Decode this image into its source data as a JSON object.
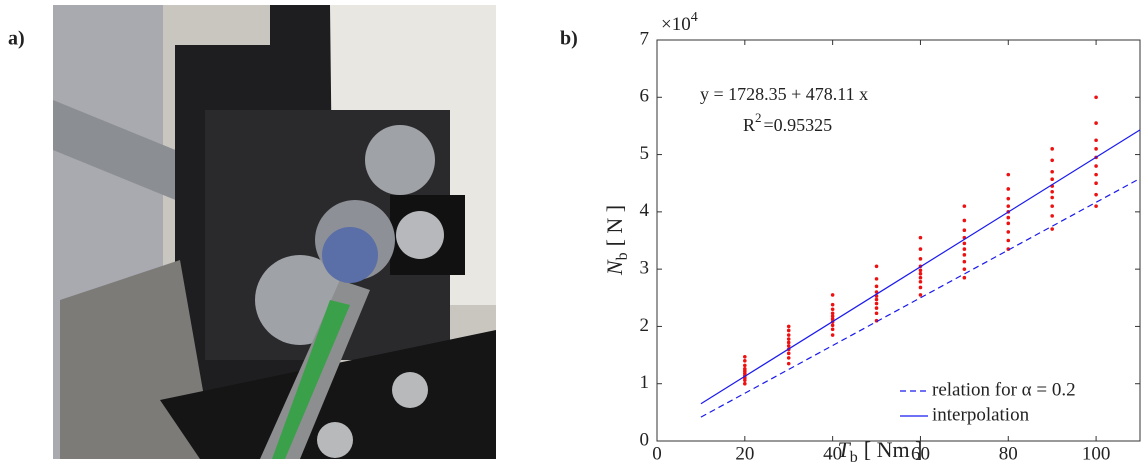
{
  "panel_labels": [
    "a)",
    "b)"
  ],
  "chart_data": {
    "type": "scatter",
    "xlabel": {
      "main": "T",
      "sub": "b",
      "unit": "[ Nm ]"
    },
    "ylabel": {
      "main": "N",
      "sub": "b",
      "unit": "[ N ]"
    },
    "y_multiplier": {
      "base": "×10",
      "exponent": "4"
    },
    "annotations": {
      "equation": "y = 1728.35 + 478.11 x",
      "r2_base": "R",
      "r2_exponent": "2",
      "r2_value": "=0.95325"
    },
    "xlim": [
      0,
      110
    ],
    "xticks": [
      0,
      20,
      40,
      60,
      80,
      100
    ],
    "ylim": [
      0,
      70000
    ],
    "yticks": [
      {
        "value": 0,
        "label": "0"
      },
      {
        "value": 10000,
        "label": "1"
      },
      {
        "value": 20000,
        "label": "2"
      },
      {
        "value": 30000,
        "label": "3"
      },
      {
        "value": 40000,
        "label": "4"
      },
      {
        "value": 50000,
        "label": "5"
      },
      {
        "value": 60000,
        "label": "6"
      },
      {
        "value": 70000,
        "label": "7"
      }
    ],
    "legend": "lower right",
    "series": [
      {
        "color": "#ee1111",
        "linestyle": "none",
        "x": [
          20,
          20,
          20,
          20,
          20,
          20,
          20,
          20,
          20,
          20,
          30,
          30,
          30,
          30,
          30,
          30,
          30,
          30,
          30,
          30,
          40,
          40,
          40,
          40,
          40,
          40,
          40,
          40,
          40,
          40,
          50,
          50,
          50,
          50,
          50,
          50,
          50,
          50,
          50,
          50,
          60,
          60,
          60,
          60,
          60,
          60,
          60,
          60,
          60,
          60,
          70,
          70,
          70,
          70,
          70,
          70,
          70,
          70,
          70,
          70,
          80,
          80,
          80,
          80,
          80,
          80,
          80,
          80,
          80,
          80,
          90,
          90,
          90,
          90,
          90,
          90,
          90,
          90,
          90,
          90,
          100,
          100,
          100,
          100,
          100,
          100,
          100,
          100,
          100,
          100
        ],
        "values": [
          10000,
          10600,
          11000,
          11400,
          11800,
          12200,
          12600,
          13200,
          14000,
          14700,
          13500,
          14500,
          15300,
          16000,
          16600,
          17200,
          17800,
          18500,
          19300,
          20000,
          18500,
          19500,
          20200,
          20800,
          21300,
          21800,
          22300,
          23000,
          23800,
          25500,
          21000,
          22300,
          23200,
          24000,
          24700,
          25300,
          26000,
          27000,
          28300,
          30500,
          25500,
          26800,
          27800,
          28500,
          29200,
          29800,
          30500,
          31800,
          33500,
          35500,
          28500,
          30000,
          31300,
          32500,
          33500,
          34500,
          35500,
          36800,
          38500,
          41000,
          33500,
          35000,
          36500,
          38000,
          39000,
          40000,
          41000,
          42300,
          44000,
          46500,
          37000,
          39300,
          41000,
          42500,
          43500,
          44500,
          45700,
          47000,
          49000,
          51000,
          41000,
          43000,
          45000,
          46500,
          48000,
          49500,
          51000,
          52500,
          55500,
          60000
        ]
      },
      {
        "name": "relation for α = 0.2",
        "color": "#1a1aee",
        "linestyle": "dashed",
        "x": [
          10,
          110
        ],
        "values": [
          4167,
          45833
        ]
      },
      {
        "name": "interpolation",
        "color": "#1a1aee",
        "linestyle": "solid",
        "x": [
          10,
          110
        ],
        "values": [
          6509,
          54320
        ]
      }
    ]
  }
}
